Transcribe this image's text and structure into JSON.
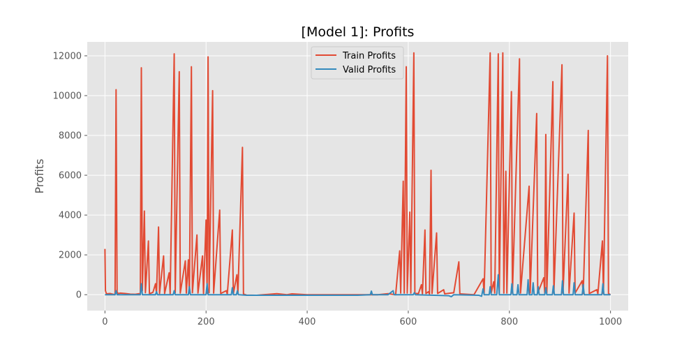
{
  "chart_data": {
    "type": "line",
    "title": "[Model 1]: Profits",
    "xlabel": "",
    "ylabel": "Profits",
    "xlim": [
      -35,
      1035
    ],
    "ylim": [
      -800,
      12700
    ],
    "xticks": [
      0,
      200,
      400,
      600,
      800,
      1000
    ],
    "yticks": [
      0,
      2000,
      4000,
      6000,
      8000,
      10000,
      12000
    ],
    "grid": true,
    "legend_position": "top-center",
    "series": [
      {
        "name": "Train Profits",
        "color": "#e24a33",
        "points": [
          [
            0,
            2300
          ],
          [
            1,
            200
          ],
          [
            3,
            40
          ],
          [
            10,
            60
          ],
          [
            20,
            0
          ],
          [
            22,
            10300
          ],
          [
            24,
            150
          ],
          [
            26,
            50
          ],
          [
            30,
            80
          ],
          [
            40,
            60
          ],
          [
            50,
            30
          ],
          [
            60,
            20
          ],
          [
            70,
            60
          ],
          [
            72,
            11400
          ],
          [
            74,
            200
          ],
          [
            78,
            4200
          ],
          [
            80,
            100
          ],
          [
            86,
            2700
          ],
          [
            88,
            50
          ],
          [
            95,
            120
          ],
          [
            100,
            550
          ],
          [
            102,
            50
          ],
          [
            106,
            3400
          ],
          [
            108,
            60
          ],
          [
            116,
            1950
          ],
          [
            118,
            60
          ],
          [
            127,
            1100
          ],
          [
            129,
            50
          ],
          [
            137,
            12100
          ],
          [
            139,
            100
          ],
          [
            147,
            11200
          ],
          [
            149,
            80
          ],
          [
            159,
            1700
          ],
          [
            161,
            80
          ],
          [
            165,
            1750
          ],
          [
            167,
            80
          ],
          [
            171,
            11450
          ],
          [
            173,
            100
          ],
          [
            182,
            3000
          ],
          [
            184,
            80
          ],
          [
            193,
            1950
          ],
          [
            195,
            60
          ],
          [
            200,
            3750
          ],
          [
            202,
            80
          ],
          [
            204,
            11950
          ],
          [
            206,
            100
          ],
          [
            213,
            10250
          ],
          [
            215,
            80
          ],
          [
            227,
            4250
          ],
          [
            229,
            60
          ],
          [
            240,
            200
          ],
          [
            242,
            30
          ],
          [
            252,
            3250
          ],
          [
            254,
            50
          ],
          [
            261,
            1000
          ],
          [
            263,
            50
          ],
          [
            272,
            7400
          ],
          [
            274,
            30
          ],
          [
            280,
            -20
          ],
          [
            300,
            -30
          ],
          [
            340,
            50
          ],
          [
            360,
            0
          ],
          [
            370,
            40
          ],
          [
            400,
            0
          ],
          [
            500,
            0
          ],
          [
            540,
            0
          ],
          [
            560,
            50
          ],
          [
            575,
            0
          ],
          [
            583,
            2200
          ],
          [
            585,
            80
          ],
          [
            590,
            5700
          ],
          [
            592,
            80
          ],
          [
            596,
            11450
          ],
          [
            598,
            80
          ],
          [
            603,
            4150
          ],
          [
            605,
            80
          ],
          [
            611,
            12150
          ],
          [
            613,
            80
          ],
          [
            620,
            50
          ],
          [
            626,
            500
          ],
          [
            628,
            40
          ],
          [
            633,
            3250
          ],
          [
            635,
            60
          ],
          [
            640,
            150
          ],
          [
            642,
            30
          ],
          [
            645,
            6250
          ],
          [
            647,
            60
          ],
          [
            656,
            3100
          ],
          [
            658,
            60
          ],
          [
            670,
            250
          ],
          [
            672,
            40
          ],
          [
            690,
            100
          ],
          [
            700,
            1650
          ],
          [
            702,
            40
          ],
          [
            730,
            0
          ],
          [
            748,
            800
          ],
          [
            750,
            50
          ],
          [
            762,
            12150
          ],
          [
            764,
            80
          ],
          [
            769,
            650
          ],
          [
            771,
            80
          ],
          [
            778,
            12100
          ],
          [
            780,
            80
          ],
          [
            787,
            12150
          ],
          [
            789,
            80
          ],
          [
            793,
            6200
          ],
          [
            795,
            80
          ],
          [
            804,
            10200
          ],
          [
            806,
            80
          ],
          [
            820,
            11850
          ],
          [
            822,
            80
          ],
          [
            839,
            5450
          ],
          [
            841,
            80
          ],
          [
            854,
            9100
          ],
          [
            856,
            80
          ],
          [
            868,
            850
          ],
          [
            870,
            80
          ],
          [
            872,
            8050
          ],
          [
            874,
            80
          ],
          [
            886,
            10700
          ],
          [
            888,
            80
          ],
          [
            904,
            11550
          ],
          [
            906,
            80
          ],
          [
            916,
            6050
          ],
          [
            918,
            80
          ],
          [
            928,
            4100
          ],
          [
            930,
            80
          ],
          [
            944,
            700
          ],
          [
            946,
            60
          ],
          [
            956,
            8250
          ],
          [
            958,
            60
          ],
          [
            973,
            250
          ],
          [
            975,
            40
          ],
          [
            984,
            2700
          ],
          [
            986,
            60
          ],
          [
            994,
            12000
          ],
          [
            996,
            60
          ],
          [
            1000,
            0
          ]
        ]
      },
      {
        "name": "Valid Profits",
        "color": "#348abd",
        "points": [
          [
            0,
            0
          ],
          [
            20,
            0
          ],
          [
            22,
            200
          ],
          [
            24,
            0
          ],
          [
            70,
            0
          ],
          [
            72,
            550
          ],
          [
            74,
            0
          ],
          [
            100,
            0
          ],
          [
            102,
            150
          ],
          [
            104,
            0
          ],
          [
            135,
            0
          ],
          [
            137,
            200
          ],
          [
            139,
            0
          ],
          [
            165,
            0
          ],
          [
            167,
            400
          ],
          [
            169,
            0
          ],
          [
            200,
            0
          ],
          [
            202,
            550
          ],
          [
            204,
            0
          ],
          [
            250,
            0
          ],
          [
            252,
            350
          ],
          [
            254,
            0
          ],
          [
            260,
            0
          ],
          [
            262,
            200
          ],
          [
            264,
            0
          ],
          [
            280,
            -30
          ],
          [
            340,
            -30
          ],
          [
            400,
            -30
          ],
          [
            500,
            -30
          ],
          [
            525,
            0
          ],
          [
            527,
            180
          ],
          [
            529,
            0
          ],
          [
            560,
            0
          ],
          [
            570,
            200
          ],
          [
            572,
            0
          ],
          [
            610,
            0
          ],
          [
            612,
            100
          ],
          [
            614,
            0
          ],
          [
            680,
            -50
          ],
          [
            685,
            -100
          ],
          [
            690,
            0
          ],
          [
            740,
            -30
          ],
          [
            745,
            -80
          ],
          [
            748,
            300
          ],
          [
            750,
            0
          ],
          [
            760,
            0
          ],
          [
            762,
            400
          ],
          [
            764,
            0
          ],
          [
            775,
            0
          ],
          [
            778,
            1000
          ],
          [
            780,
            0
          ],
          [
            803,
            0
          ],
          [
            805,
            550
          ],
          [
            807,
            0
          ],
          [
            815,
            0
          ],
          [
            817,
            500
          ],
          [
            819,
            0
          ],
          [
            835,
            0
          ],
          [
            837,
            750
          ],
          [
            839,
            0
          ],
          [
            845,
            0
          ],
          [
            847,
            600
          ],
          [
            849,
            0
          ],
          [
            855,
            0
          ],
          [
            857,
            400
          ],
          [
            859,
            0
          ],
          [
            870,
            0
          ],
          [
            872,
            350
          ],
          [
            874,
            0
          ],
          [
            885,
            0
          ],
          [
            887,
            450
          ],
          [
            889,
            0
          ],
          [
            903,
            0
          ],
          [
            905,
            700
          ],
          [
            907,
            0
          ],
          [
            926,
            0
          ],
          [
            928,
            600
          ],
          [
            930,
            0
          ],
          [
            944,
            0
          ],
          [
            946,
            500
          ],
          [
            948,
            0
          ],
          [
            983,
            0
          ],
          [
            985,
            550
          ],
          [
            987,
            0
          ],
          [
            1000,
            0
          ]
        ]
      }
    ]
  }
}
